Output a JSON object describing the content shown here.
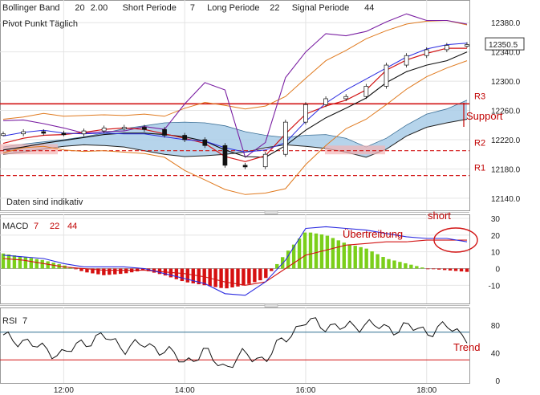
{
  "chart_data": [
    {
      "type": "line",
      "panel": "price",
      "indicators": [
        {
          "name": "Bollinger Band",
          "params": [
            "20",
            "2.00"
          ]
        },
        {
          "name": "Short Periode",
          "params": [
            "7"
          ]
        },
        {
          "name": "Long Periode",
          "params": [
            "22"
          ]
        },
        {
          "name": "Signal Periode",
          "params": [
            "44"
          ]
        }
      ],
      "subtitle": "Pivot Punkt  Täglich",
      "note": "Daten sind indikativ",
      "last_price": "12350.5",
      "ylim": [
        12130,
        12400
      ],
      "y_ticks": [
        "12380.0",
        "12340.0",
        "12300.0",
        "12260.0",
        "12220.0",
        "12180.0",
        "12140.0"
      ],
      "x_ticks": [
        "12:00",
        "14:00",
        "16:00",
        "18:00"
      ],
      "pivot_levels": [
        {
          "label": "R3",
          "value": 12269
        },
        {
          "label": "R2",
          "value": 12205
        },
        {
          "label": "R1",
          "value": 12171
        }
      ],
      "annotation": "Support",
      "x": [
        "11:00",
        "11:20",
        "11:40",
        "12:00",
        "12:20",
        "12:40",
        "13:00",
        "13:20",
        "13:40",
        "14:00",
        "14:20",
        "14:40",
        "15:00",
        "15:20",
        "15:40",
        "16:00",
        "16:20",
        "16:40",
        "17:00",
        "17:20",
        "17:40",
        "18:00",
        "18:20",
        "18:40"
      ],
      "close": [
        12228,
        12231,
        12229,
        12228,
        12232,
        12236,
        12237,
        12234,
        12226,
        12220,
        12212,
        12185,
        12183,
        12200,
        12244,
        12268,
        12276,
        12279,
        12293,
        12322,
        12335,
        12343,
        12349,
        12350
      ],
      "ma_fast": [
        12215,
        12222,
        12226,
        12227,
        12230,
        12234,
        12236,
        12234,
        12228,
        12222,
        12215,
        12197,
        12190,
        12198,
        12228,
        12255,
        12266,
        12274,
        12288,
        12315,
        12329,
        12338,
        12345,
        12345
      ],
      "ma_slow": [
        12206,
        12210,
        12215,
        12219,
        12223,
        12227,
        12229,
        12229,
        12227,
        12224,
        12218,
        12206,
        12197,
        12196,
        12212,
        12233,
        12250,
        12263,
        12277,
        12298,
        12313,
        12322,
        12328,
        12340
      ],
      "bb_upper": [
        12248,
        12251,
        12256,
        12252,
        12253,
        12254,
        12253,
        12255,
        12252,
        12263,
        12271,
        12267,
        12262,
        12266,
        12279,
        12304,
        12328,
        12342,
        12358,
        12369,
        12378,
        12382,
        12383,
        12377
      ],
      "bb_lower": [
        12202,
        12209,
        12211,
        12206,
        12204,
        12205,
        12203,
        12201,
        12196,
        12178,
        12165,
        12152,
        12145,
        12147,
        12153,
        12186,
        12212,
        12235,
        12248,
        12268,
        12289,
        12306,
        12318,
        12328
      ],
      "bb_mid": [
        12225,
        12230,
        12233,
        12229,
        12228,
        12229,
        12228,
        12228,
        12224,
        12220,
        12218,
        12209,
        12203,
        12206,
        12216,
        12245,
        12270,
        12288,
        12303,
        12318,
        12333,
        12344,
        12350,
        12352
      ],
      "cloud_upper": [
        12210,
        12214,
        12217,
        12220,
        12224,
        12229,
        12235,
        12239,
        12243,
        12244,
        12243,
        12239,
        12231,
        12226,
        12223,
        12226,
        12227,
        12222,
        12210,
        12222,
        12240,
        12255,
        12262,
        12274
      ],
      "cloud_lower": [
        12200,
        12203,
        12207,
        12211,
        12213,
        12212,
        12210,
        12205,
        12200,
        12197,
        12198,
        12200,
        12203,
        12209,
        12213,
        12211,
        12208,
        12203,
        12196,
        12207,
        12225,
        12237,
        12243,
        12248
      ],
      "purple_line": [
        12246,
        12247,
        12242,
        12236,
        12229,
        12231,
        12232,
        12238,
        12234,
        12269,
        12298,
        12288,
        12196,
        12216,
        12305,
        12340,
        12365,
        12362,
        12368,
        12381,
        12392,
        12383,
        12383,
        12378
      ]
    },
    {
      "type": "bar",
      "panel": "macd",
      "title": "MACD",
      "params": [
        "7",
        "22",
        "44"
      ],
      "ylim": [
        -18,
        30
      ],
      "y_ticks": [
        "30",
        "20",
        "10",
        "0",
        "-10"
      ],
      "annotations": [
        "short",
        "Übertreibung"
      ],
      "x": [
        "11:00",
        "11:20",
        "11:40",
        "12:00",
        "12:20",
        "12:40",
        "13:00",
        "13:20",
        "13:40",
        "14:00",
        "14:20",
        "14:40",
        "15:00",
        "15:20",
        "15:40",
        "16:00",
        "16:20",
        "16:40",
        "17:00",
        "17:20",
        "17:40",
        "18:00",
        "18:20",
        "18:40"
      ],
      "histogram": [
        9,
        7,
        5,
        2,
        -2,
        -4,
        -3,
        -1,
        -4,
        -8,
        -10,
        -12,
        -10,
        -6,
        9,
        22,
        20,
        15,
        12,
        6,
        3,
        0,
        -1,
        -2
      ],
      "macd": [
        8,
        7,
        6,
        3,
        1,
        1,
        1,
        0,
        -3,
        -6,
        -9,
        -15,
        -16,
        -8,
        5,
        24,
        25,
        24,
        23,
        21,
        19,
        18,
        18,
        16
      ],
      "signal": [
        6,
        5,
        3,
        1,
        0,
        -1,
        -1,
        -1,
        -2,
        -3,
        -5,
        -8,
        -10,
        -8,
        0,
        8,
        11,
        14,
        15,
        16,
        16,
        17,
        17,
        17
      ]
    },
    {
      "type": "line",
      "panel": "rsi",
      "title": "RSI",
      "params": [
        "7"
      ],
      "ylim": [
        0,
        100
      ],
      "y_ticks": [
        "80",
        "40",
        "0"
      ],
      "levels": [
        70,
        30
      ],
      "annotation": "Trend",
      "x": [
        "11:00",
        "11:20",
        "11:40",
        "12:00",
        "12:20",
        "12:40",
        "13:00",
        "13:20",
        "13:40",
        "14:00",
        "14:20",
        "14:40",
        "15:00",
        "15:20",
        "15:40",
        "16:00",
        "16:20",
        "16:40",
        "17:00",
        "17:20",
        "17:40",
        "18:00",
        "18:20",
        "18:40"
      ],
      "values": [
        62,
        58,
        45,
        38,
        56,
        64,
        48,
        52,
        44,
        27,
        41,
        19,
        38,
        30,
        63,
        85,
        80,
        76,
        83,
        74,
        78,
        71,
        78,
        64
      ]
    }
  ]
}
